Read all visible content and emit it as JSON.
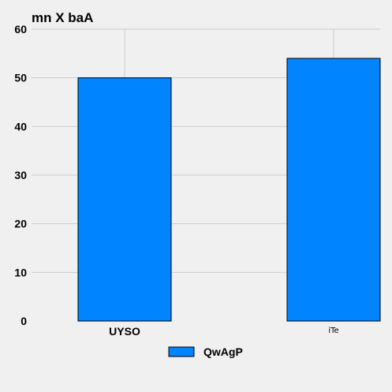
{
  "chart_data": {
    "type": "bar",
    "title": "mn X baA",
    "xlabel": "",
    "ylabel": "",
    "categories": [
      "UYSO",
      "iTe"
    ],
    "series": [
      {
        "name": "QwAgP",
        "values": [
          50,
          54
        ]
      }
    ],
    "ylim": [
      0,
      60
    ],
    "yticks": [
      0,
      10,
      20,
      30,
      40,
      50,
      60
    ],
    "grid": true,
    "legend_position": "bottom-center",
    "colors": {
      "bar": "#0084ff",
      "bar_edge": "#000000",
      "grid": "#cbcbcb",
      "background": "#f0f0f0"
    }
  }
}
